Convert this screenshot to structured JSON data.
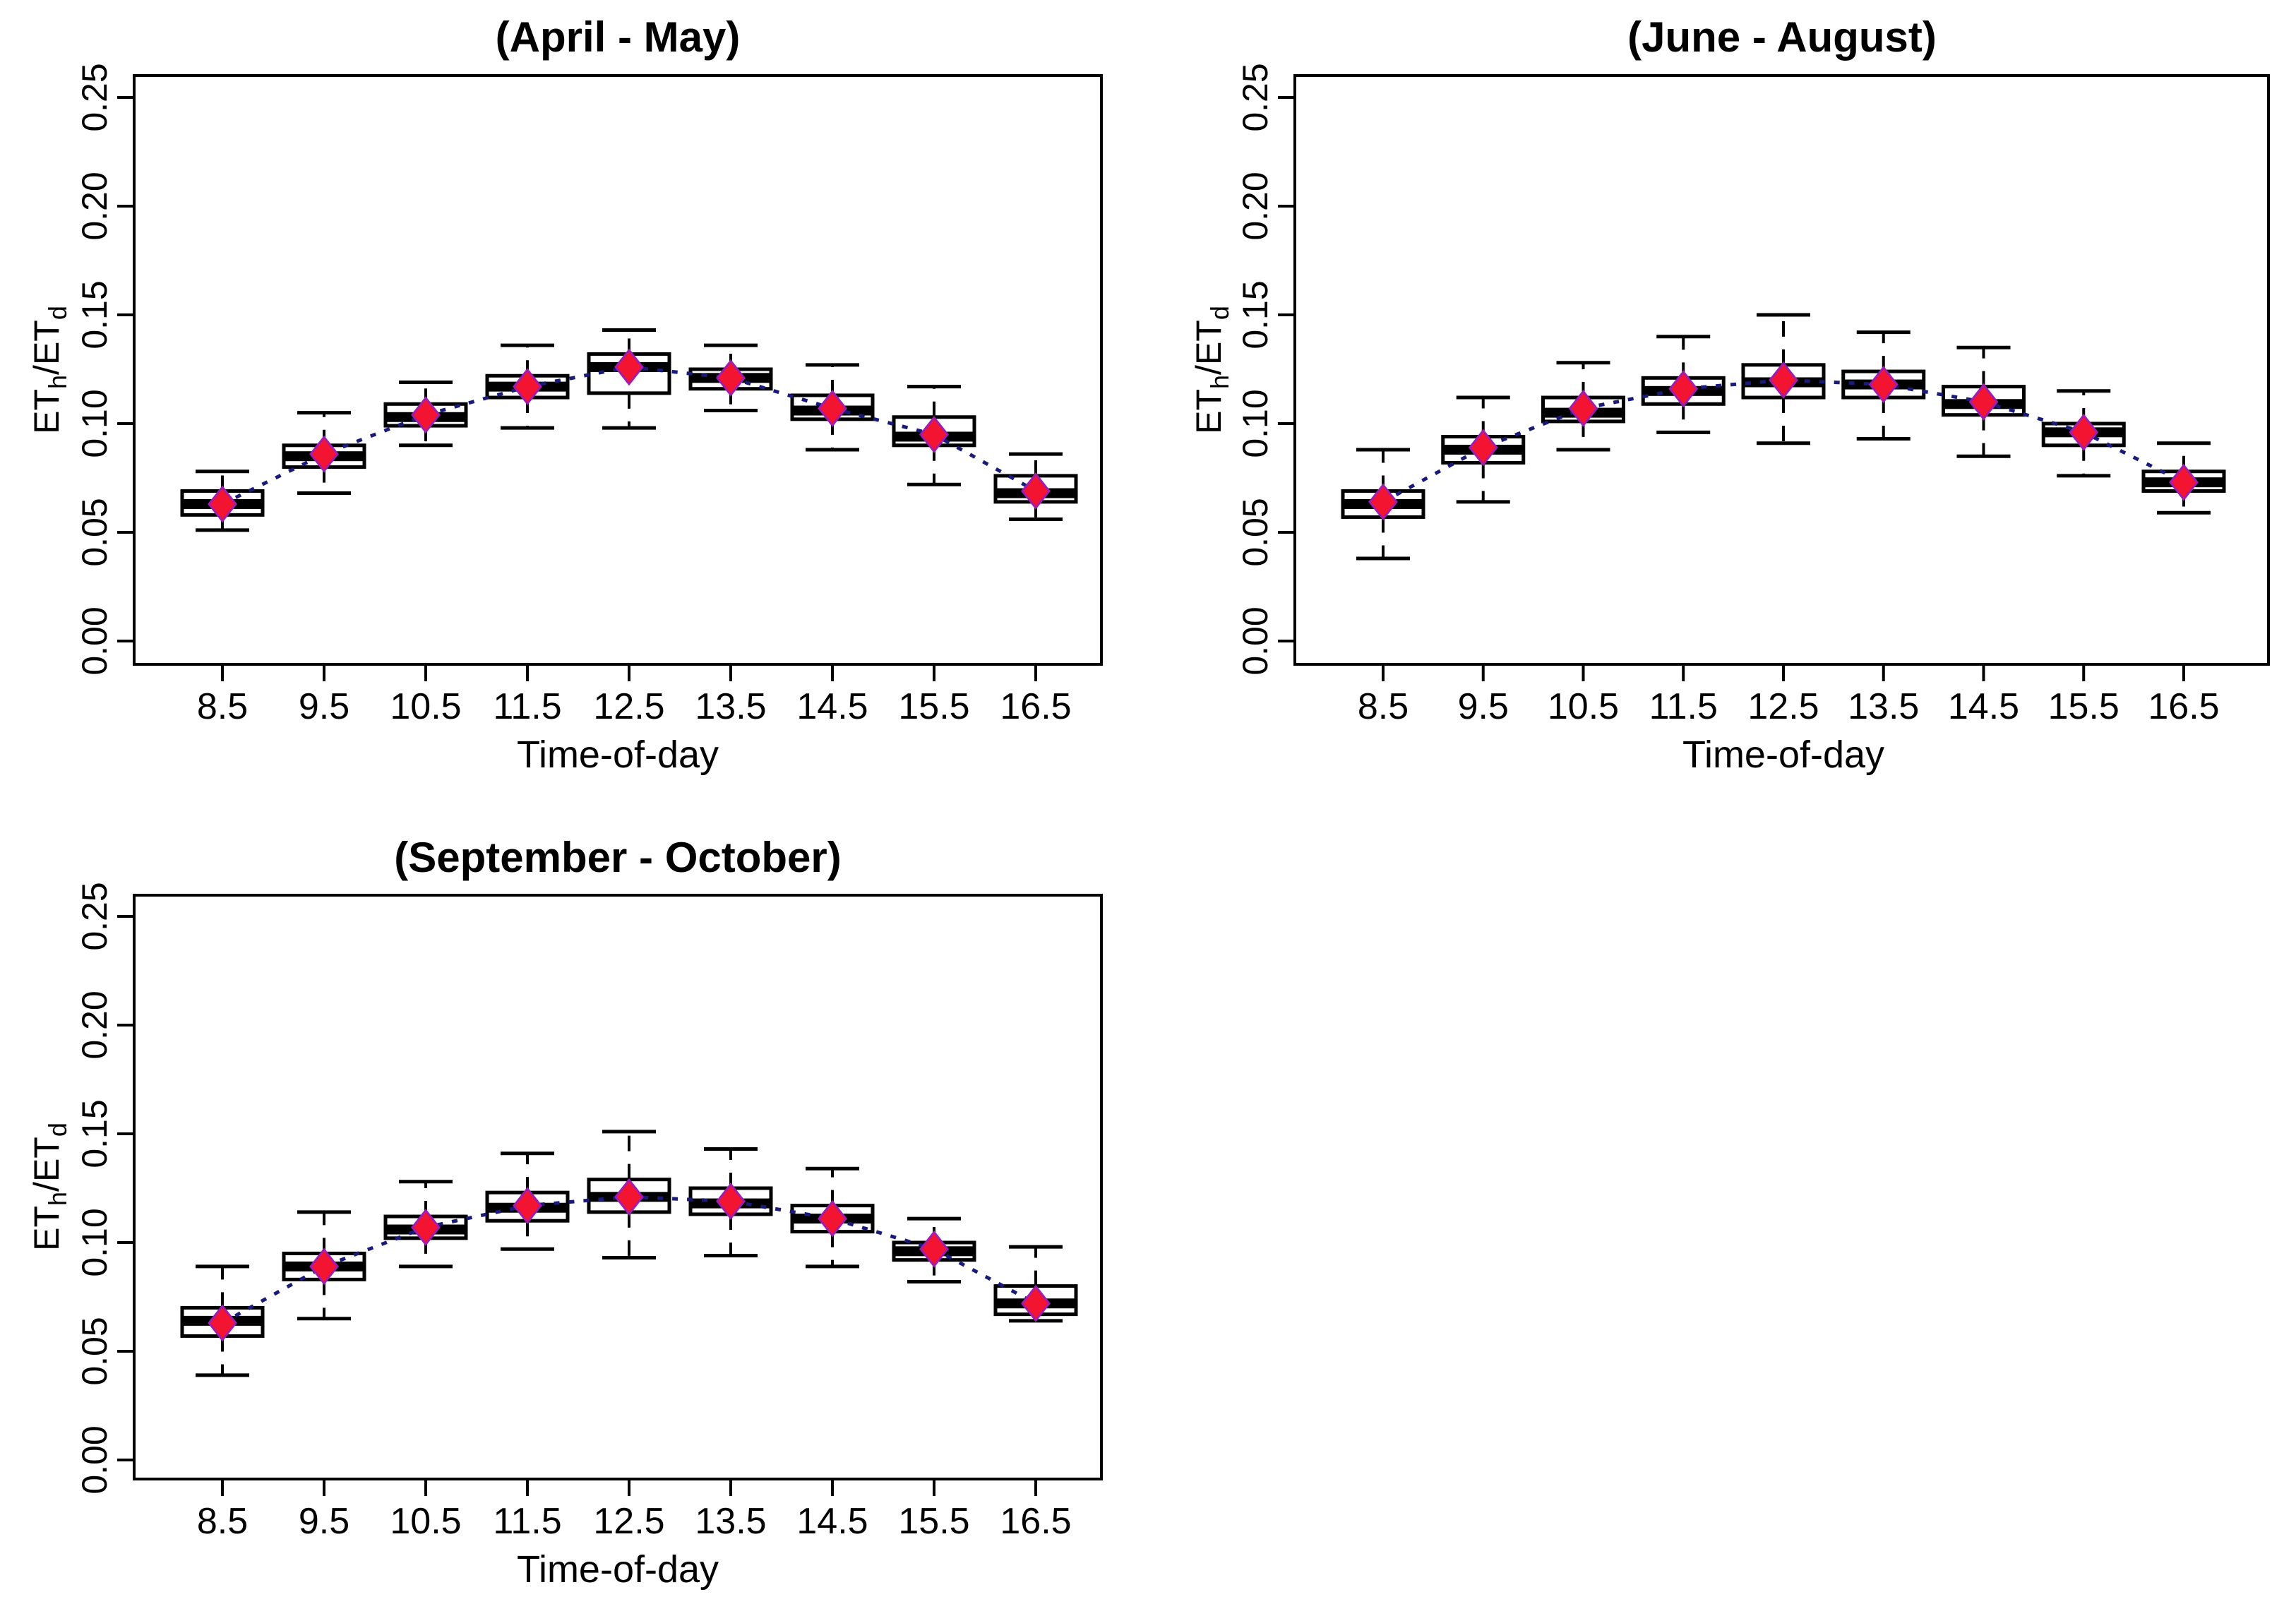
{
  "figure": {
    "background": "#ffffff",
    "colors": {
      "box_stroke": "#000000",
      "box_fill": "#ffffff",
      "median_fill": "#000000",
      "whisker": "#000000",
      "mean_line": "#1a1a78",
      "mean_fill": "#f21430",
      "mean_stroke": "#a21caf",
      "axis": "#000000"
    }
  },
  "chart_data": [
    {
      "type": "box",
      "title": "(April - May)",
      "xlabel": "Time-of-day",
      "ylabel": "ETh/ETd",
      "ylabel_parts": {
        "a": "ET",
        "a_sub": "h",
        "b": "/ET",
        "b_sub": "d"
      },
      "ylim": [
        0,
        0.25
      ],
      "grid": false,
      "y_ticks": [
        {
          "v": 0.0,
          "label": "0.00"
        },
        {
          "v": 0.05,
          "label": "0.05"
        },
        {
          "v": 0.1,
          "label": "0.10"
        },
        {
          "v": 0.15,
          "label": "0.15"
        },
        {
          "v": 0.2,
          "label": "0.20"
        },
        {
          "v": 0.25,
          "label": "0.25"
        }
      ],
      "categories": [
        "8.5",
        "9.5",
        "10.5",
        "11.5",
        "12.5",
        "13.5",
        "14.5",
        "15.5",
        "16.5"
      ],
      "boxes": [
        {
          "whislo": 0.051,
          "q1": 0.058,
          "med": 0.063,
          "q3": 0.069,
          "whishi": 0.078,
          "mean": 0.063
        },
        {
          "whislo": 0.068,
          "q1": 0.08,
          "med": 0.085,
          "q3": 0.09,
          "whishi": 0.105,
          "mean": 0.086
        },
        {
          "whislo": 0.09,
          "q1": 0.099,
          "med": 0.103,
          "q3": 0.109,
          "whishi": 0.119,
          "mean": 0.104
        },
        {
          "whislo": 0.098,
          "q1": 0.112,
          "med": 0.117,
          "q3": 0.122,
          "whishi": 0.136,
          "mean": 0.117
        },
        {
          "whislo": 0.098,
          "q1": 0.114,
          "med": 0.126,
          "q3": 0.132,
          "whishi": 0.143,
          "mean": 0.126
        },
        {
          "whislo": 0.106,
          "q1": 0.116,
          "med": 0.121,
          "q3": 0.125,
          "whishi": 0.136,
          "mean": 0.121
        },
        {
          "whislo": 0.088,
          "q1": 0.102,
          "med": 0.106,
          "q3": 0.113,
          "whishi": 0.127,
          "mean": 0.107
        },
        {
          "whislo": 0.072,
          "q1": 0.09,
          "med": 0.094,
          "q3": 0.103,
          "whishi": 0.117,
          "mean": 0.095
        },
        {
          "whislo": 0.056,
          "q1": 0.064,
          "med": 0.068,
          "q3": 0.076,
          "whishi": 0.086,
          "mean": 0.069
        }
      ]
    },
    {
      "type": "box",
      "title": "(June - August)",
      "xlabel": "Time-of-day",
      "ylabel": "ETh/ETd",
      "ylabel_parts": {
        "a": "ET",
        "a_sub": "h",
        "b": "/ET",
        "b_sub": "d"
      },
      "ylim": [
        0,
        0.25
      ],
      "grid": false,
      "y_ticks": [
        {
          "v": 0.0,
          "label": "0.00"
        },
        {
          "v": 0.05,
          "label": "0.05"
        },
        {
          "v": 0.1,
          "label": "0.10"
        },
        {
          "v": 0.15,
          "label": "0.15"
        },
        {
          "v": 0.2,
          "label": "0.20"
        },
        {
          "v": 0.25,
          "label": "0.25"
        }
      ],
      "categories": [
        "8.5",
        "9.5",
        "10.5",
        "11.5",
        "12.5",
        "13.5",
        "14.5",
        "15.5",
        "16.5"
      ],
      "boxes": [
        {
          "whislo": 0.038,
          "q1": 0.057,
          "med": 0.063,
          "q3": 0.069,
          "whishi": 0.088,
          "mean": 0.064
        },
        {
          "whislo": 0.064,
          "q1": 0.082,
          "med": 0.088,
          "q3": 0.094,
          "whishi": 0.112,
          "mean": 0.089
        },
        {
          "whislo": 0.088,
          "q1": 0.101,
          "med": 0.105,
          "q3": 0.112,
          "whishi": 0.128,
          "mean": 0.107
        },
        {
          "whislo": 0.096,
          "q1": 0.109,
          "med": 0.115,
          "q3": 0.121,
          "whishi": 0.14,
          "mean": 0.116
        },
        {
          "whislo": 0.091,
          "q1": 0.112,
          "med": 0.119,
          "q3": 0.127,
          "whishi": 0.15,
          "mean": 0.12
        },
        {
          "whislo": 0.093,
          "q1": 0.112,
          "med": 0.118,
          "q3": 0.124,
          "whishi": 0.142,
          "mean": 0.118
        },
        {
          "whislo": 0.085,
          "q1": 0.104,
          "med": 0.109,
          "q3": 0.117,
          "whishi": 0.135,
          "mean": 0.11
        },
        {
          "whislo": 0.076,
          "q1": 0.09,
          "med": 0.096,
          "q3": 0.1,
          "whishi": 0.115,
          "mean": 0.096
        },
        {
          "whislo": 0.059,
          "q1": 0.069,
          "med": 0.073,
          "q3": 0.078,
          "whishi": 0.091,
          "mean": 0.073
        }
      ]
    },
    {
      "type": "box",
      "title": "(September - October)",
      "xlabel": "Time-of-day",
      "ylabel": "ETh/ETd",
      "ylabel_parts": {
        "a": "ET",
        "a_sub": "h",
        "b": "/ET",
        "b_sub": "d"
      },
      "ylim": [
        0,
        0.25
      ],
      "grid": false,
      "y_ticks": [
        {
          "v": 0.0,
          "label": "0.00"
        },
        {
          "v": 0.05,
          "label": "0.05"
        },
        {
          "v": 0.1,
          "label": "0.10"
        },
        {
          "v": 0.15,
          "label": "0.15"
        },
        {
          "v": 0.2,
          "label": "0.20"
        },
        {
          "v": 0.25,
          "label": "0.25"
        }
      ],
      "categories": [
        "8.5",
        "9.5",
        "10.5",
        "11.5",
        "12.5",
        "13.5",
        "14.5",
        "15.5",
        "16.5"
      ],
      "boxes": [
        {
          "whislo": 0.039,
          "q1": 0.057,
          "med": 0.064,
          "q3": 0.07,
          "whishi": 0.089,
          "mean": 0.063
        },
        {
          "whislo": 0.065,
          "q1": 0.083,
          "med": 0.089,
          "q3": 0.095,
          "whishi": 0.114,
          "mean": 0.089
        },
        {
          "whislo": 0.089,
          "q1": 0.102,
          "med": 0.106,
          "q3": 0.112,
          "whishi": 0.128,
          "mean": 0.107
        },
        {
          "whislo": 0.097,
          "q1": 0.11,
          "med": 0.116,
          "q3": 0.123,
          "whishi": 0.141,
          "mean": 0.117
        },
        {
          "whislo": 0.093,
          "q1": 0.114,
          "med": 0.121,
          "q3": 0.129,
          "whishi": 0.151,
          "mean": 0.121
        },
        {
          "whislo": 0.094,
          "q1": 0.113,
          "med": 0.118,
          "q3": 0.125,
          "whishi": 0.143,
          "mean": 0.119
        },
        {
          "whislo": 0.089,
          "q1": 0.105,
          "med": 0.111,
          "q3": 0.117,
          "whishi": 0.134,
          "mean": 0.111
        },
        {
          "whislo": 0.082,
          "q1": 0.092,
          "med": 0.096,
          "q3": 0.1,
          "whishi": 0.111,
          "mean": 0.097
        },
        {
          "whislo": 0.064,
          "q1": 0.067,
          "med": 0.072,
          "q3": 0.08,
          "whishi": 0.098,
          "mean": 0.072
        }
      ]
    }
  ]
}
